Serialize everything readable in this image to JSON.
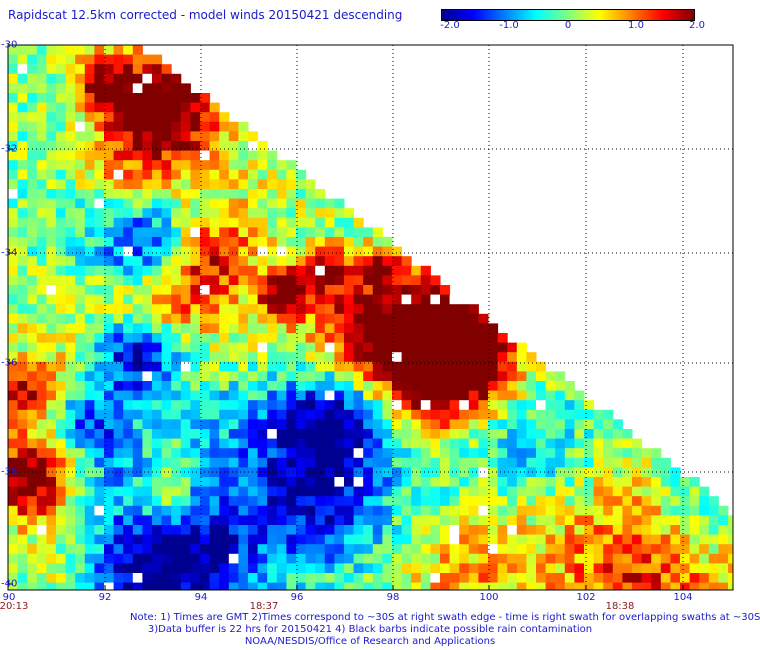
{
  "title": "Rapidscat 12.5km corrected - model winds 20150421 descending",
  "colorbar": {
    "labels": [
      "-2.0",
      "-1.0",
      "0",
      "1.0",
      "2.0"
    ],
    "min": -2.0,
    "max": 2.0,
    "colors": [
      "#000090",
      "#0000ff",
      "#0080ff",
      "#00ffff",
      "#80ff80",
      "#ffff00",
      "#ff8000",
      "#ff0000",
      "#800000"
    ]
  },
  "axes": {
    "lat_labels": [
      "-30",
      "-32",
      "-34",
      "-36",
      "-38",
      "-40"
    ],
    "lon_labels": [
      "90",
      "92",
      "94",
      "96",
      "98",
      "100",
      "102",
      "104"
    ]
  },
  "times": [
    "20:13",
    "18:37",
    "18:38"
  ],
  "notes": {
    "line1": "Note: 1) Times are GMT 2)Times correspond to ~30S at right swath edge - time is right swath for overlapping swaths at ~30S",
    "line2": "3)Data buffer is 22 hrs for 20150421 4) Black barbs indicate possible rain contamination",
    "line3": "NOAA/NESDIS/Office of Research and Applications"
  }
}
